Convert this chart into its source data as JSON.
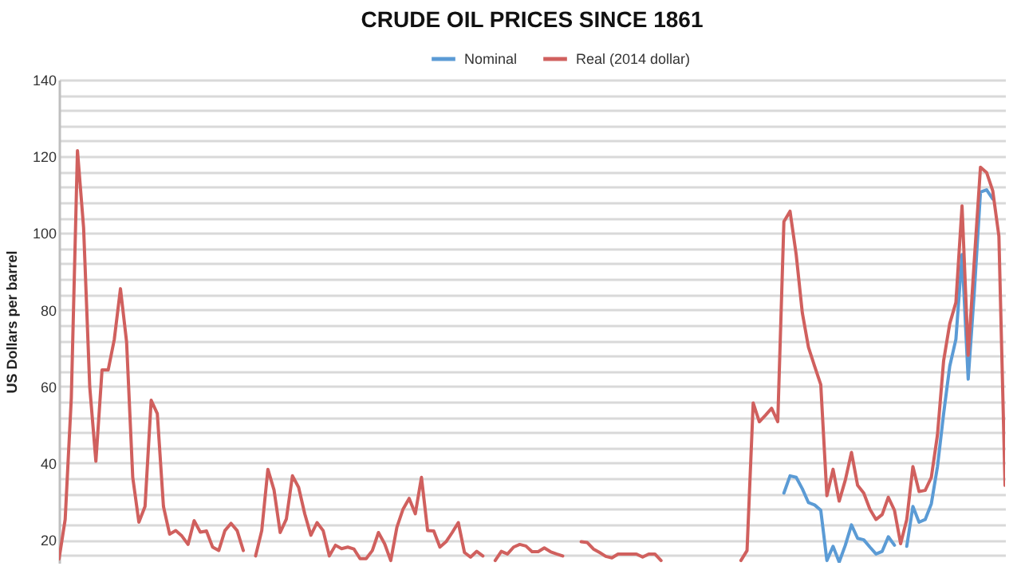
{
  "chart_data": {
    "type": "line",
    "title": "CRUDE OIL PRICES SINCE 1861",
    "ylabel": "US Dollars per barrel",
    "categories": [
      null,
      null,
      null,
      null,
      null,
      null,
      null,
      null,
      null,
      null,
      null,
      null,
      null,
      null,
      null,
      null,
      null,
      null,
      null,
      null,
      null,
      null,
      null,
      null,
      null,
      null,
      null,
      null,
      null,
      null,
      null,
      null,
      null,
      null,
      null,
      null,
      null,
      null,
      null,
      null,
      null,
      null,
      null,
      null,
      null,
      null,
      null,
      null,
      null,
      null,
      null,
      null,
      null,
      null,
      null,
      null,
      null,
      null,
      null,
      null,
      null,
      null,
      null,
      null,
      null,
      null,
      null,
      null,
      null,
      null,
      null,
      null,
      null,
      null,
      null,
      null,
      null,
      null,
      null,
      null,
      null,
      null,
      null,
      null,
      null,
      null,
      null,
      null,
      null,
      null,
      null,
      null,
      null,
      null,
      null,
      null,
      null,
      null,
      null,
      null,
      null,
      null,
      null,
      null,
      null,
      null,
      null,
      null,
      null,
      null,
      null,
      null,
      null,
      null,
      null,
      null,
      null,
      null,
      null,
      null,
      null,
      null,
      null,
      null,
      null,
      null,
      null,
      null,
      null,
      null,
      null,
      null,
      null,
      null,
      null,
      null,
      null,
      null,
      null,
      null,
      null,
      null,
      null,
      null,
      null,
      null,
      null,
      null,
      null,
      null,
      null,
      null,
      null,
      null,
      null
    ],
    "series": [
      {
        "name": "Nominal",
        "color": "#5b9bd5",
        "values": [
          null,
          null,
          null,
          null,
          null,
          null,
          null,
          null,
          null,
          null,
          null,
          null,
          null,
          null,
          null,
          null,
          null,
          null,
          null,
          null,
          null,
          null,
          null,
          null,
          null,
          null,
          null,
          null,
          null,
          null,
          null,
          null,
          null,
          null,
          null,
          null,
          null,
          null,
          null,
          null,
          null,
          null,
          null,
          null,
          null,
          null,
          null,
          null,
          null,
          null,
          null,
          null,
          null,
          null,
          null,
          null,
          null,
          null,
          null,
          null,
          null,
          null,
          null,
          null,
          null,
          null,
          null,
          null,
          null,
          null,
          null,
          null,
          null,
          null,
          null,
          null,
          null,
          null,
          null,
          null,
          null,
          null,
          null,
          null,
          null,
          null,
          null,
          null,
          null,
          null,
          null,
          null,
          null,
          null,
          null,
          null,
          null,
          null,
          null,
          null,
          null,
          null,
          null,
          null,
          null,
          null,
          null,
          null,
          null,
          null,
          null,
          null,
          null,
          null,
          null,
          null,
          null,
          null,
          32.2,
          36.7,
          36.3,
          33.3,
          29.7,
          29.1,
          27.7,
          14.6,
          18.3,
          14.2,
          18.6,
          23.9,
          20.4,
          20,
          18.1,
          16.3,
          17,
          20.8,
          18.6,
          null,
          18.3,
          28.7,
          24.6,
          25.3,
          29.4,
          39.1,
          52.9,
          65.3,
          72.3,
          94.4,
          61.9,
          84.7,
          110.7,
          111.3,
          108.9,
          null,
          null
        ]
      },
      {
        "name": "Real (2014 dollar)",
        "color": "#d0605e",
        "values": [
          15,
          25.3,
          57,
          121.5,
          101.4,
          59.9,
          40.5,
          64.3,
          64.3,
          72.3,
          85.5,
          71.6,
          36.3,
          24.6,
          28.7,
          56.4,
          52.9,
          28.7,
          21.5,
          22.4,
          21,
          18.8,
          25,
          22,
          22.3,
          18.1,
          17.2,
          22.4,
          24.3,
          22.4,
          17.2,
          null,
          15.8,
          22.4,
          38.4,
          33,
          21.9,
          25.4,
          36.7,
          33.7,
          26.8,
          21.2,
          24.5,
          22.4,
          15.8,
          18.6,
          17.7,
          18.1,
          17.6,
          15.1,
          15.1,
          17.2,
          21.9,
          19,
          14.6,
          23.3,
          28,
          30.8,
          26.8,
          36.3,
          22.4,
          22.3,
          18.1,
          19.5,
          21.9,
          24.5,
          16.7,
          15.5,
          17,
          15.8,
          null,
          14.6,
          17,
          16.3,
          18.1,
          18.8,
          18.4,
          16.9,
          16.9,
          17.9,
          16.9,
          16.3,
          15.8,
          null,
          null,
          19.5,
          19.3,
          17.6,
          16.7,
          15.7,
          15.3,
          16.3,
          16.3,
          16.3,
          16.3,
          15.5,
          16.3,
          16.3,
          14.6,
          null,
          null,
          null,
          null,
          null,
          null,
          null,
          null,
          null,
          null,
          null,
          null,
          14.6,
          17.2,
          55.7,
          50.8,
          52.5,
          54.3,
          50.8,
          103,
          105.7,
          94.4,
          79.2,
          70.2,
          65.3,
          60.5,
          31.5,
          38.4,
          30.1,
          35.6,
          42.8,
          34.2,
          32.2,
          28,
          25.3,
          26.6,
          31.1,
          27.7,
          19,
          25.3,
          39.1,
          32.6,
          32.9,
          36.3,
          47.4,
          66.7,
          76.4,
          81.9,
          107.1,
          68.1,
          93,
          117.2,
          115.8,
          111,
          99.2,
          34.2
        ]
      }
    ],
    "ylim": [
      14,
      140
    ],
    "yticks": [
      {
        "value": 16,
        "label": null
      },
      20,
      {
        "value": 24,
        "label": null
      },
      {
        "value": 28,
        "label": null
      },
      {
        "value": 32,
        "label": null
      },
      {
        "value": 36,
        "label": null
      },
      40,
      {
        "value": 44,
        "label": null
      },
      {
        "value": 48,
        "label": null
      },
      {
        "value": 52,
        "label": null
      },
      {
        "value": 56,
        "label": null
      },
      60,
      {
        "value": 64,
        "label": null
      },
      {
        "value": 68,
        "label": null
      },
      {
        "value": 72,
        "label": null
      },
      {
        "value": 76,
        "label": null
      },
      80,
      {
        "value": 84,
        "label": null
      },
      {
        "value": 88,
        "label": null
      },
      {
        "value": 92,
        "label": null
      },
      {
        "value": 96,
        "label": null
      },
      100,
      {
        "value": 104,
        "label": null
      },
      {
        "value": 108,
        "label": null
      },
      {
        "value": 112,
        "label": null
      },
      {
        "value": 116,
        "label": null
      },
      120,
      {
        "value": 124,
        "label": null
      },
      {
        "value": 128,
        "label": null
      },
      {
        "value": 132,
        "label": null
      },
      {
        "value": 136,
        "label": null
      },
      140
    ],
    "grid": "y",
    "legend": "top",
    "tick_labels": "y",
    "marker": "none",
    "line_style": "solid"
  }
}
